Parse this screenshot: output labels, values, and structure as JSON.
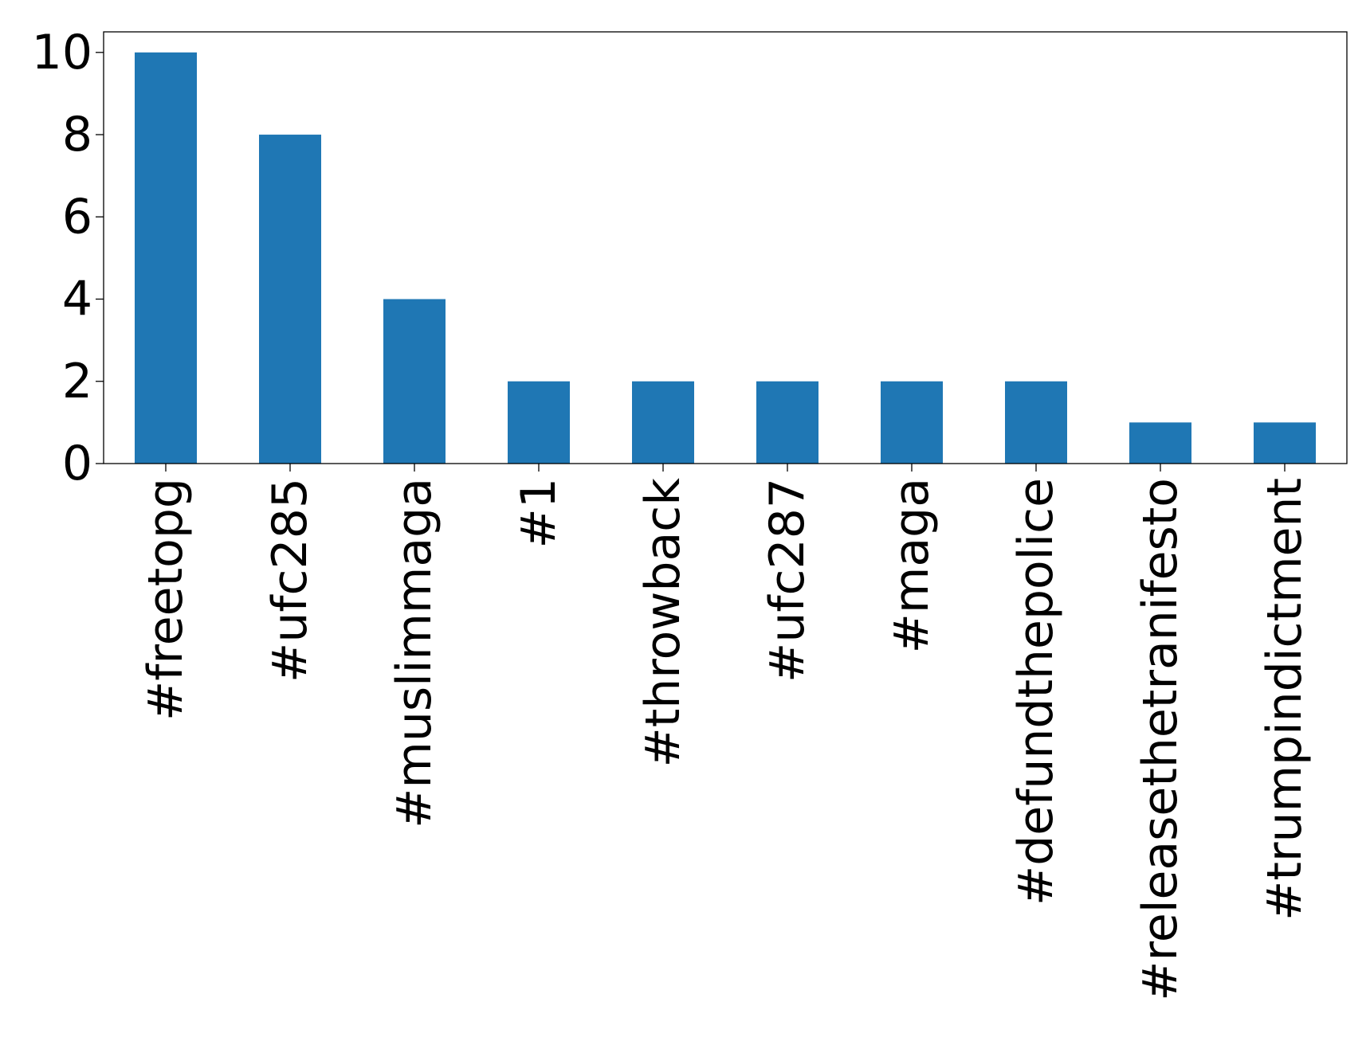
{
  "chart_data": {
    "type": "bar",
    "title": "",
    "xlabel": "",
    "ylabel": "",
    "categories": [
      "#freetopg",
      "#ufc285",
      "#muslimmaga",
      "#1",
      "#throwback",
      "#ufc287",
      "#maga",
      "#defundthepolice",
      "#releasethetranifesto",
      "#trumpindictment"
    ],
    "values": [
      10,
      8,
      4,
      2,
      2,
      2,
      2,
      2,
      1,
      1
    ],
    "ylim": [
      0,
      10.5
    ],
    "yticks": [
      0,
      2,
      4,
      6,
      8,
      10
    ],
    "bar_color": "#1f77b4",
    "grid": false,
    "legend": "none"
  }
}
